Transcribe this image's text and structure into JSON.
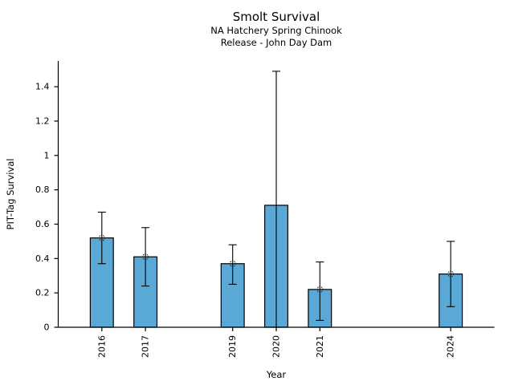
{
  "chart_data": {
    "type": "bar",
    "title": "Smolt Survival",
    "subtitle_lines": [
      "NA Hatchery Spring Chinook",
      "Release - John Day Dam"
    ],
    "xlabel": "Year",
    "ylabel": "PIT-Tag Survival",
    "xlim": [
      2015,
      2025
    ],
    "ylim": [
      0,
      1.55
    ],
    "yticks": [
      0,
      0.2,
      0.4,
      0.6,
      0.8,
      1.0,
      1.2,
      1.4
    ],
    "ytick_labels": [
      "0",
      "0.2",
      "0.4",
      "0.6",
      "0.8",
      "1",
      "1.2",
      "1.4"
    ],
    "x_tick_labels": [
      "2016",
      "2017",
      "2019",
      "2020",
      "2021",
      "2024"
    ],
    "points": [
      {
        "year": 2016,
        "value": 0.52,
        "ci_low": 0.37,
        "ci_high": 0.67,
        "marker": true
      },
      {
        "year": 2017,
        "value": 0.41,
        "ci_low": 0.24,
        "ci_high": 0.58,
        "marker": true
      },
      {
        "year": 2019,
        "value": 0.37,
        "ci_low": 0.25,
        "ci_high": 0.48,
        "marker": true
      },
      {
        "year": 2020,
        "value": 0.71,
        "ci_low": 0.0,
        "ci_high": 1.49,
        "marker": false
      },
      {
        "year": 2021,
        "value": 0.22,
        "ci_low": 0.04,
        "ci_high": 0.38,
        "marker": true
      },
      {
        "year": 2024,
        "value": 0.31,
        "ci_low": 0.12,
        "ci_high": 0.5,
        "marker": true
      }
    ],
    "bar_width_years": 0.53,
    "grid": false,
    "legend": null,
    "colors": {
      "bar_fill": "#5aa8d5",
      "bar_edge": "#000000",
      "error_bar": "#000000",
      "marker_edge": "#2b2b2b",
      "axis": "#000000",
      "text": "#000000"
    }
  }
}
